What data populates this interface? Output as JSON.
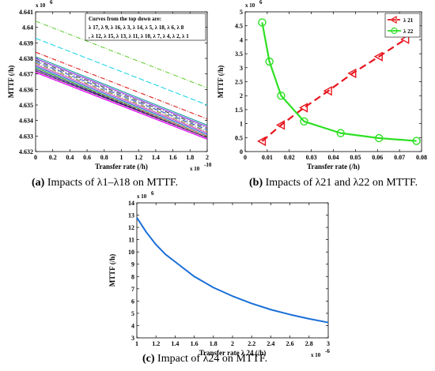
{
  "chart_data": [
    {
      "id": "a",
      "type": "line",
      "caption_label": "(a)",
      "caption_text": "Impacts of λ1–λ18 on MTTF.",
      "xlabel": "Transfer rate (/h)",
      "ylabel": "MTTF (/h)",
      "x_exponent": "x 10",
      "x_exponent_power": "-10",
      "y_exponent": "x 10",
      "y_exponent_power": "6",
      "xlim": [
        0,
        2
      ],
      "ylim": [
        4.632,
        4.641
      ],
      "xticks": [
        "0",
        "0.2",
        "0.4",
        "0.6",
        "0.8",
        "1",
        "1.2",
        "1.4",
        "1.6",
        "1.8",
        "2"
      ],
      "yticks": [
        "4.632",
        "4.633",
        "4.634",
        "4.635",
        "4.636",
        "4.637",
        "4.638",
        "4.639",
        "4.64",
        "4.641"
      ],
      "legend_lines": [
        "Curves from the top down are:",
        "λ 17, λ 9, λ 16, λ 3, λ 14, λ 5, λ 18, λ 6, λ 8",
        ", λ 12, λ 15, λ 13, λ 11, λ 10, λ 7, λ 4, λ 2, λ 1"
      ],
      "series": [
        {
          "values": [
            4.6404,
            4.6361
          ],
          "color": "#6ccf3c",
          "dash": "6,2,1,2"
        },
        {
          "values": [
            4.6393,
            4.635
          ],
          "color": "#22d6e6",
          "dash": "7,3"
        },
        {
          "values": [
            4.6384,
            4.6341
          ],
          "color": "#e01c1c",
          "dash": "6,2,1,2"
        },
        {
          "values": [
            4.6381,
            4.6337
          ],
          "color": "#1a9d9d",
          "dash": ""
        },
        {
          "values": [
            4.638,
            4.6336
          ],
          "color": "#8a2be2",
          "dash": ""
        },
        {
          "values": [
            4.6379,
            4.6335
          ],
          "color": "#404040",
          "dash": "6,2,1,2"
        },
        {
          "values": [
            4.6378,
            4.6334
          ],
          "color": "#3050c8",
          "dash": "7,3"
        },
        {
          "values": [
            4.6377,
            4.6333
          ],
          "color": "#7a7a20",
          "dash": "6,2,1,2"
        },
        {
          "values": [
            4.6376,
            4.6332
          ],
          "color": "#c03ab0",
          "dash": ""
        },
        {
          "values": [
            4.6375,
            4.6331
          ],
          "color": "#1a50d8",
          "dash": ""
        },
        {
          "values": [
            4.6374,
            4.633
          ],
          "color": "#20a020",
          "dash": ""
        },
        {
          "values": [
            4.6373,
            4.633
          ],
          "color": "#e05050",
          "dash": "4,2"
        },
        {
          "values": [
            4.6373,
            4.6329
          ],
          "color": "#2020a0",
          "dash": ""
        },
        {
          "values": [
            4.6372,
            4.6329
          ],
          "color": "#a000a0",
          "dash": ""
        },
        {
          "values": [
            4.6372,
            4.6329
          ],
          "color": "#303030",
          "dash": "4,2"
        },
        {
          "values": [
            4.6371,
            4.6328
          ],
          "color": "#d04040",
          "dash": "1,2"
        },
        {
          "values": [
            4.6371,
            4.6328
          ],
          "color": "#0000d0",
          "dash": ""
        },
        {
          "values": [
            4.6371,
            4.6328
          ],
          "color": "#ff00ff",
          "dash": ""
        }
      ]
    },
    {
      "id": "b",
      "type": "line",
      "caption_label": "(b)",
      "caption_text": "Impacts of λ21 and λ22 on MTTF.",
      "xlabel": "Transfer rate (/h)",
      "ylabel": "MTTF (/h)",
      "y_exponent": "x 10",
      "y_exponent_power": "6",
      "xlim": [
        0,
        0.08
      ],
      "ylim": [
        0,
        5
      ],
      "xticks": [
        "0",
        "0.01",
        "0.02",
        "0.03",
        "0.04",
        "0.05",
        "0.06",
        "0.07",
        "0.08"
      ],
      "yticks": [
        "0",
        "0.5",
        "1",
        "1.5",
        "2",
        "2.5",
        "3",
        "3.5",
        "4",
        "4.5",
        "5"
      ],
      "series": [
        {
          "name": "λ 21",
          "color": "#e8141c",
          "marker": "triangle",
          "x": [
            0.0077,
            0.0163,
            0.0267,
            0.0377,
            0.0487,
            0.0607,
            0.0727
          ],
          "y": [
            0.37,
            0.95,
            1.57,
            2.17,
            2.8,
            3.4,
            4.02
          ]
        },
        {
          "name": "λ 22",
          "color": "#2ee024",
          "marker": "circle",
          "x": [
            0.0077,
            0.011,
            0.0163,
            0.0267,
            0.0433,
            0.0607,
            0.0777
          ],
          "y": [
            4.62,
            3.22,
            2.0,
            1.08,
            0.66,
            0.48,
            0.38
          ]
        }
      ]
    },
    {
      "id": "c",
      "type": "line",
      "caption_label": "(c)",
      "caption_text": "Impact of λ24 on MTTF.",
      "xlabel": "Transfer rate  λ 24 (/h)",
      "ylabel": "MTTF (/h)",
      "x_exponent": "x 10",
      "x_exponent_power": "-6",
      "y_exponent": "x 10",
      "y_exponent_power": "6",
      "xlim": [
        1,
        3
      ],
      "ylim": [
        3,
        14
      ],
      "xticks": [
        "1",
        "1.2",
        "1.4",
        "1.6",
        "1.8",
        "2",
        "2.2",
        "2.4",
        "2.6",
        "2.8",
        "3"
      ],
      "yticks": [
        "3",
        "4",
        "5",
        "6",
        "7",
        "8",
        "9",
        "10",
        "11",
        "12",
        "13",
        "14"
      ],
      "series": [
        {
          "color": "#1a6fd8",
          "x": [
            1.0,
            1.1,
            1.2,
            1.3,
            1.4,
            1.6,
            1.8,
            2.0,
            2.2,
            2.4,
            2.6,
            2.8,
            3.0
          ],
          "y": [
            12.8,
            11.6,
            10.6,
            9.8,
            9.2,
            8.0,
            7.1,
            6.4,
            5.8,
            5.3,
            4.9,
            4.55,
            4.25
          ]
        }
      ]
    }
  ]
}
